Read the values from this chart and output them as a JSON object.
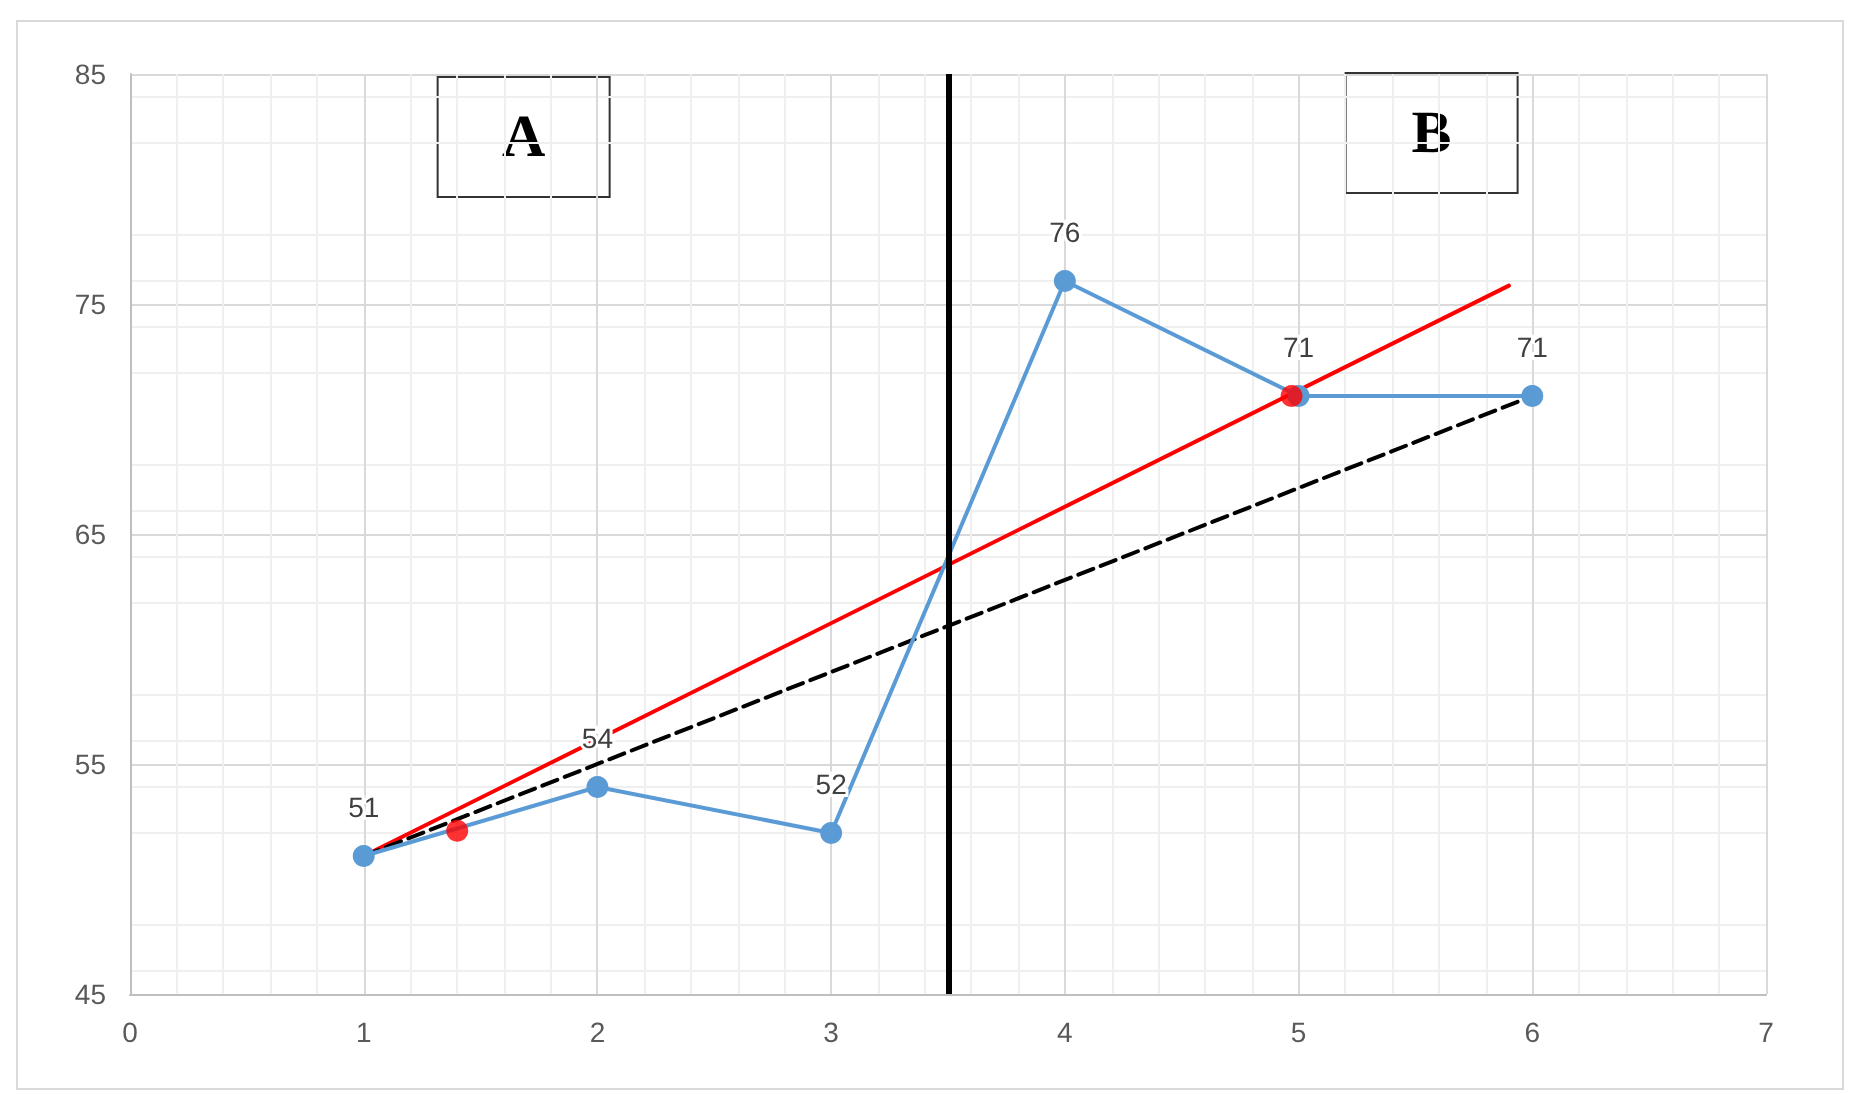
{
  "chart_data": {
    "type": "line",
    "xlim": [
      0,
      7
    ],
    "xticks": [
      0,
      1,
      2,
      3,
      4,
      5,
      6,
      7
    ],
    "ylim": [
      45,
      85
    ],
    "yticks": [
      45,
      55,
      65,
      75,
      85
    ],
    "grid": true,
    "annotations": [
      "A",
      "B"
    ],
    "ref_lines": [
      {
        "axis": "x",
        "value": 3.5,
        "color": "#000000",
        "line_style": "solid"
      }
    ],
    "series": [
      {
        "type": "line",
        "color": "#5b9bd5",
        "marker": "circle",
        "line_style": "solid",
        "x": [
          1,
          2,
          3,
          4,
          5,
          6
        ],
        "values": [
          51,
          54,
          52,
          76,
          71,
          71
        ],
        "value_labels": [
          "51",
          "54",
          "52",
          "76",
          "71",
          "71"
        ]
      },
      {
        "type": "line",
        "color": "#ff0000",
        "marker": "none",
        "line_style": "solid",
        "x": [
          1,
          5.9
        ],
        "values": [
          51,
          75.8
        ]
      },
      {
        "type": "scatter",
        "color": "#ff0000",
        "marker": "circle",
        "x": [
          1.4,
          4.97
        ],
        "values": [
          52.1,
          71
        ]
      },
      {
        "type": "line",
        "color": "#000000",
        "marker": "none",
        "line_style": "dashed",
        "x": [
          1,
          6
        ],
        "values": [
          51,
          71
        ]
      }
    ]
  }
}
